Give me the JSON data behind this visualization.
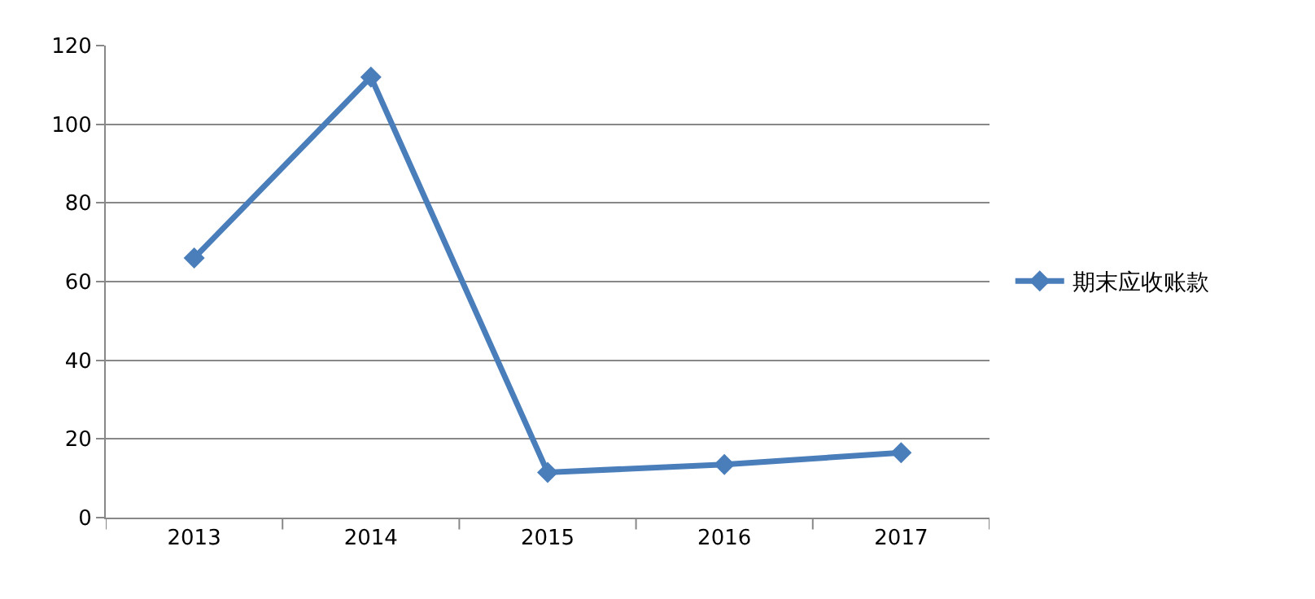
{
  "chart_data": {
    "type": "line",
    "categories": [
      "2013",
      "2014",
      "2015",
      "2016",
      "2017"
    ],
    "series": [
      {
        "name": "期末应收账款",
        "color": "#4a7ebb",
        "values": [
          66,
          112,
          11.5,
          13.5,
          16.5
        ]
      }
    ],
    "ylim": [
      0,
      120
    ],
    "yticks": [
      0,
      20,
      40,
      60,
      80,
      100,
      120
    ],
    "grid": "y",
    "legend": "right",
    "marker": "diamond",
    "line_style": "solid"
  }
}
